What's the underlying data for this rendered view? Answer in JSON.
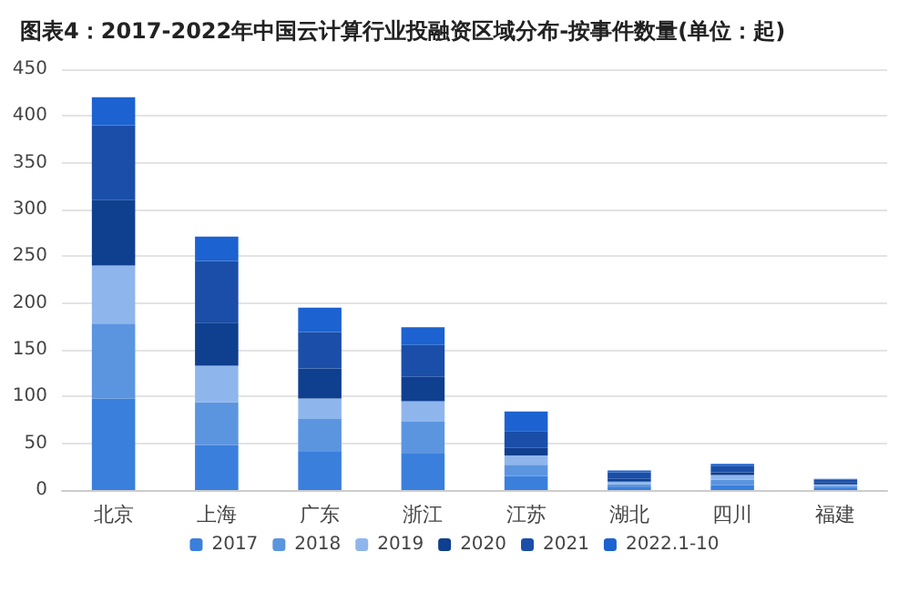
{
  "chart_data": {
    "type": "bar",
    "stacked": true,
    "title": "图表4：2017-2022年中国云计算行业投融资区域分布-按事件数量(单位：起)",
    "categories": [
      "北京",
      "上海",
      "广东",
      "浙江",
      "江苏",
      "湖北",
      "四川",
      "福建"
    ],
    "series": [
      {
        "name": "2017",
        "color": "#3a7fdc",
        "values": [
          98,
          48,
          41,
          39,
          15,
          3,
          5,
          2
        ]
      },
      {
        "name": "2018",
        "color": "#5b95e0",
        "values": [
          80,
          46,
          35,
          34,
          12,
          3,
          6,
          2
        ]
      },
      {
        "name": "2019",
        "color": "#8fb6ec",
        "values": [
          62,
          39,
          22,
          22,
          10,
          3,
          5,
          2
        ]
      },
      {
        "name": "2020",
        "color": "#0f3f8f",
        "values": [
          70,
          46,
          32,
          26,
          8,
          3,
          3,
          2
        ]
      },
      {
        "name": "2021",
        "color": "#1a4ea8",
        "values": [
          80,
          66,
          39,
          34,
          18,
          7,
          7,
          3
        ]
      },
      {
        "name": "2022.1-10",
        "color": "#1c62d0",
        "values": [
          30,
          26,
          26,
          19,
          21,
          2,
          2,
          1
        ]
      }
    ],
    "ylim": [
      0,
      450
    ],
    "yticks": [
      0,
      50,
      100,
      150,
      200,
      250,
      300,
      350,
      400,
      450
    ],
    "grid": "y",
    "legend": "bottom"
  }
}
